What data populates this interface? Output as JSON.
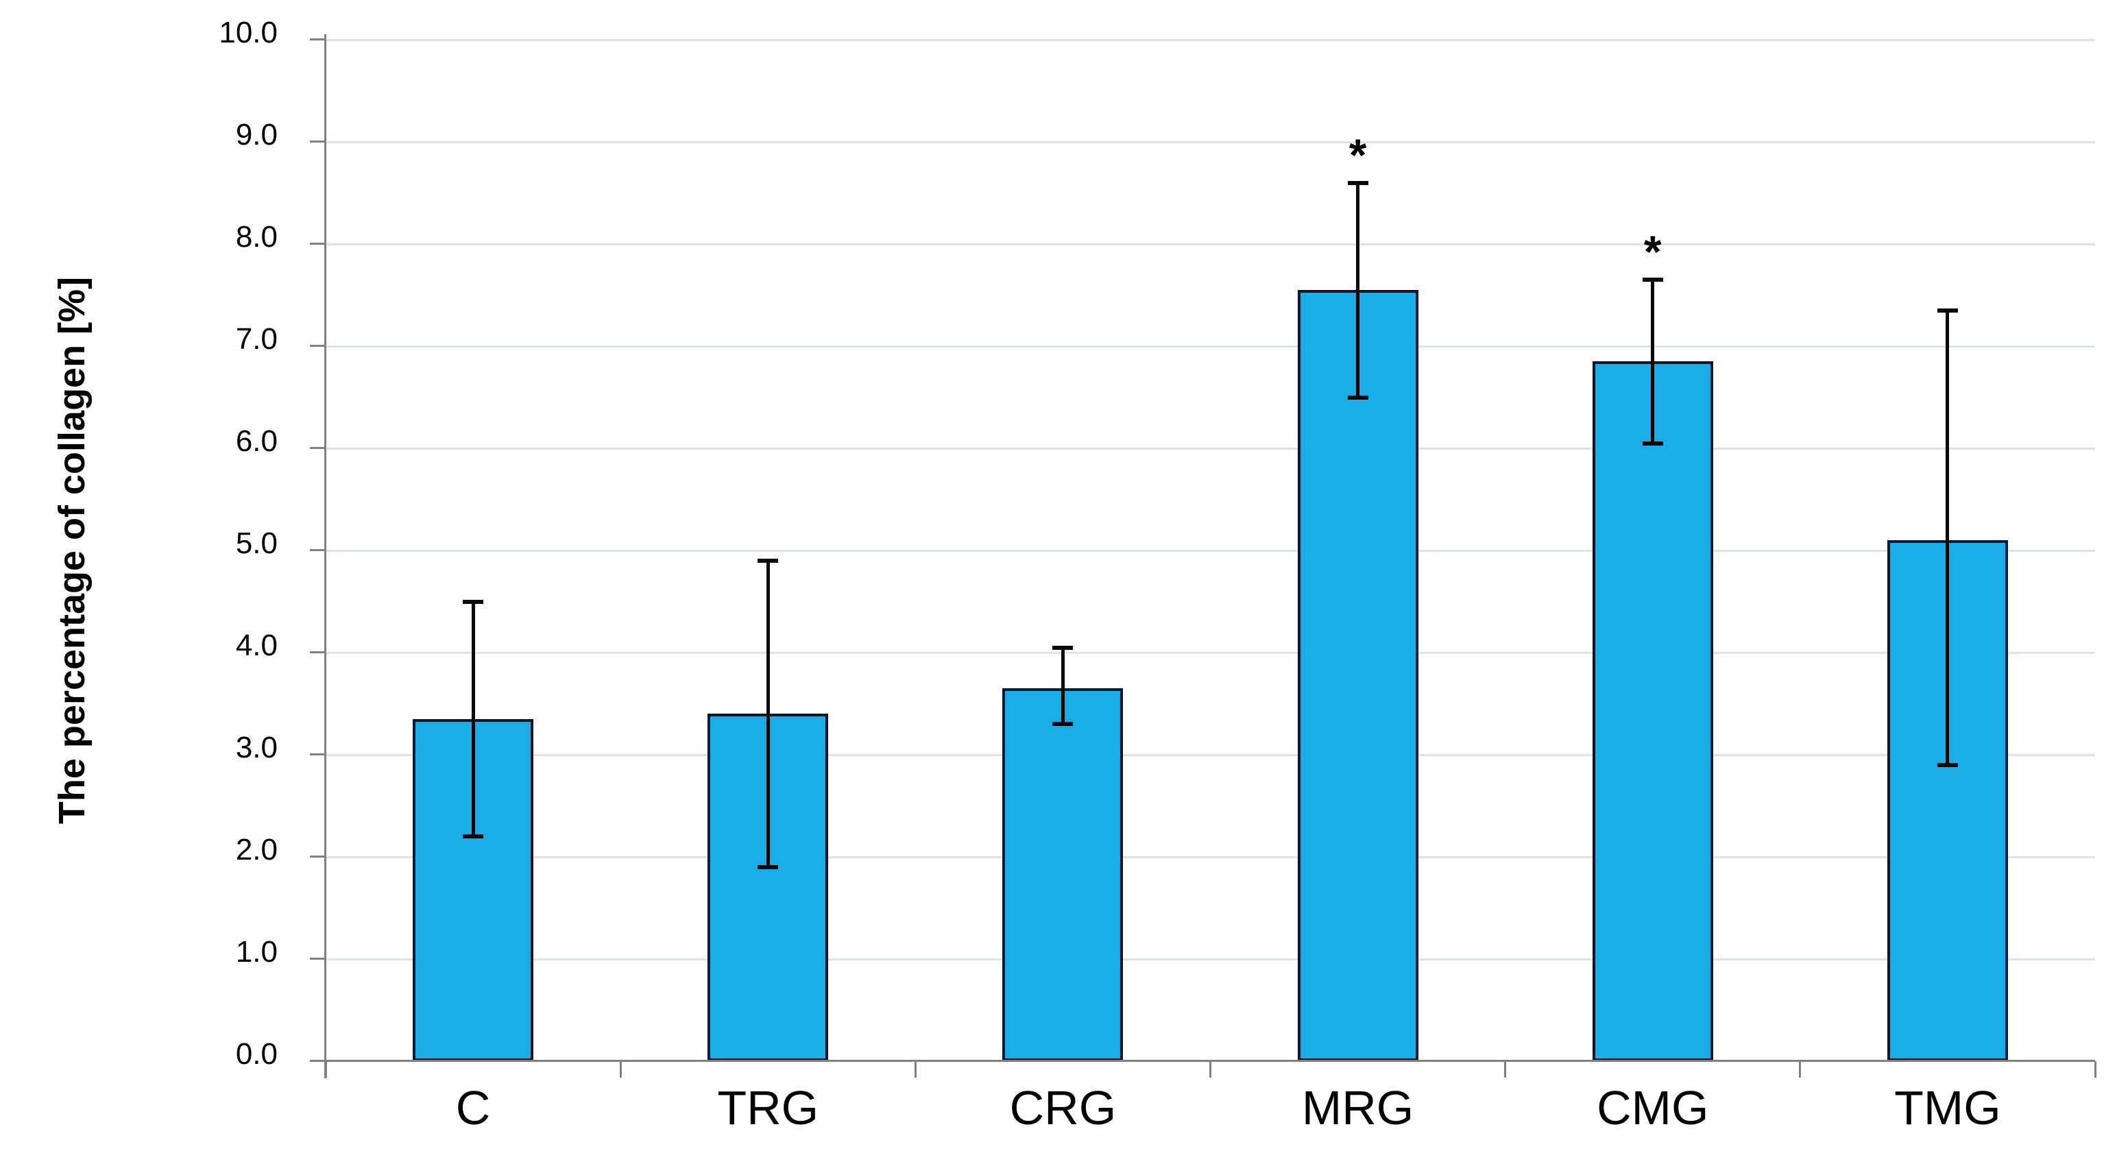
{
  "chart_data": {
    "type": "bar",
    "title": "",
    "xlabel": "",
    "ylabel": "The percentage of collagen [%]",
    "categories": [
      "C",
      "TRG",
      "CRG",
      "MRG",
      "CMG",
      "TMG"
    ],
    "values": [
      3.35,
      3.4,
      3.65,
      7.55,
      6.85,
      5.1
    ],
    "error_low": [
      2.2,
      1.9,
      3.3,
      6.5,
      6.05,
      2.9
    ],
    "error_high": [
      4.5,
      4.9,
      4.05,
      8.6,
      7.65,
      7.35
    ],
    "significance": [
      "",
      "",
      "",
      "*",
      "*",
      ""
    ],
    "ylim": [
      0,
      10
    ],
    "ytick_step": 1.0,
    "ytick_labels": [
      "0.0",
      "1.0",
      "2.0",
      "3.0",
      "4.0",
      "5.0",
      "6.0",
      "7.0",
      "8.0",
      "9.0",
      "10.0"
    ],
    "grid": true,
    "legend": "none",
    "colors": {
      "bar_fill": "#1AACE6",
      "bar_border": "#0A1830",
      "error_bar": "#0A0A0A",
      "gridline": "#DCE3EA",
      "axis": "#808080",
      "text": "#000000",
      "background": "#FFFFFF"
    }
  }
}
